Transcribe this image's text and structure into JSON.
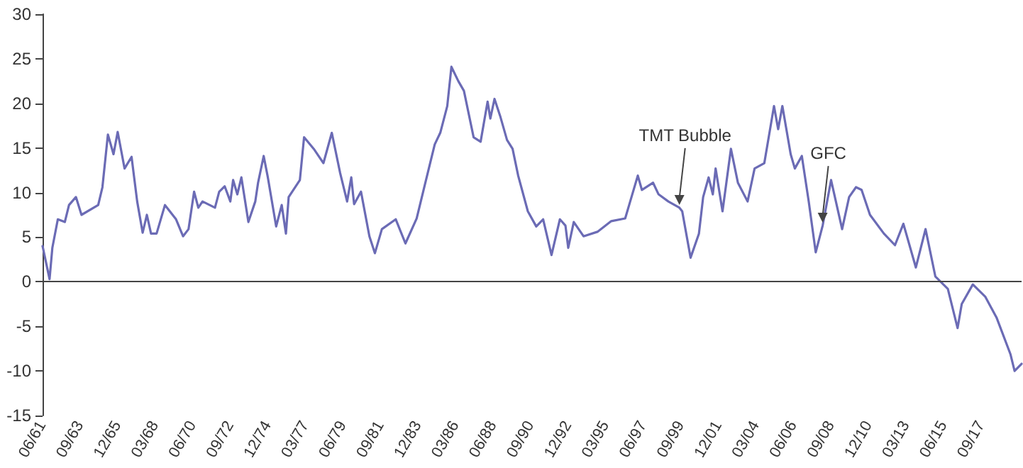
{
  "chart_data": {
    "type": "line",
    "marker": "none",
    "line_style": "solid",
    "grid": false,
    "xlim": [
      "1961-06",
      "2020-02"
    ],
    "ylim": [
      -15,
      30
    ],
    "yticks": [
      -15,
      -10,
      -5,
      0,
      5,
      10,
      15,
      20,
      25,
      30
    ],
    "xticks": [
      {
        "value": "1961-06",
        "label": "06/61"
      },
      {
        "value": "1963-09",
        "label": "09/63"
      },
      {
        "value": "1965-12",
        "label": "12/65"
      },
      {
        "value": "1968-03",
        "label": "03/68"
      },
      {
        "value": "1970-06",
        "label": "06/70"
      },
      {
        "value": "1972-09",
        "label": "09/72"
      },
      {
        "value": "1974-12",
        "label": "12/74"
      },
      {
        "value": "1977-03",
        "label": "03/77"
      },
      {
        "value": "1979-06",
        "label": "06/79"
      },
      {
        "value": "1981-09",
        "label": "09/81"
      },
      {
        "value": "1983-12",
        "label": "12/83"
      },
      {
        "value": "1986-03",
        "label": "03/86"
      },
      {
        "value": "1988-06",
        "label": "06/88"
      },
      {
        "value": "1990-09",
        "label": "09/90"
      },
      {
        "value": "1992-12",
        "label": "12/92"
      },
      {
        "value": "1995-03",
        "label": "03/95"
      },
      {
        "value": "1997-06",
        "label": "06/97"
      },
      {
        "value": "1999-09",
        "label": "09/99"
      },
      {
        "value": "2001-12",
        "label": "12/01"
      },
      {
        "value": "2004-03",
        "label": "03/04"
      },
      {
        "value": "2006-06",
        "label": "06/06"
      },
      {
        "value": "2008-09",
        "label": "09/08"
      },
      {
        "value": "2010-12",
        "label": "12/10"
      },
      {
        "value": "2013-03",
        "label": "03/13"
      },
      {
        "value": "2015-06",
        "label": "06/15"
      },
      {
        "value": "2017-09",
        "label": "09/17"
      }
    ],
    "ref_lines": [
      {
        "axis": "y",
        "value": 0,
        "color": "#444444"
      }
    ],
    "annotations": [
      {
        "text": "TMT Bubble",
        "x": "1999-08",
        "y": 8.3
      },
      {
        "text": "GFC",
        "x": "2008-03",
        "y": 6.3
      }
    ],
    "series": [
      {
        "color": "#6b6bb5",
        "x": [
          "1961-06",
          "1961-11",
          "1962-01",
          "1962-05",
          "1962-10",
          "1963-01",
          "1963-06",
          "1963-10",
          "1964-10",
          "1965-01",
          "1965-05",
          "1965-09",
          "1965-12",
          "1966-05",
          "1966-10",
          "1967-02",
          "1967-06",
          "1967-09",
          "1967-12",
          "1968-04",
          "1968-10",
          "1969-06",
          "1969-11",
          "1970-03",
          "1970-07",
          "1970-10",
          "1971-01",
          "1971-10",
          "1972-01",
          "1972-05",
          "1972-09",
          "1972-11",
          "1973-02",
          "1973-05",
          "1973-10",
          "1974-03",
          "1974-05",
          "1974-09",
          "1974-12",
          "1975-06",
          "1975-10",
          "1976-01",
          "1976-03",
          "1976-11",
          "1977-02",
          "1977-09",
          "1978-04",
          "1978-10",
          "1979-04",
          "1979-09",
          "1979-12",
          "1980-02",
          "1980-07",
          "1981-01",
          "1981-05",
          "1981-10",
          "1982-08",
          "1983-03",
          "1983-11",
          "1984-04",
          "1984-12",
          "1985-04",
          "1985-09",
          "1985-12",
          "1986-05",
          "1986-09",
          "1987-04",
          "1987-09",
          "1988-02",
          "1988-04",
          "1988-07",
          "1988-11",
          "1989-04",
          "1989-08",
          "1989-12",
          "1990-07",
          "1991-01",
          "1991-06",
          "1991-12",
          "1992-06",
          "1992-10",
          "1992-12",
          "1993-04",
          "1993-11",
          "1994-09",
          "1995-07",
          "1996-05",
          "1996-08",
          "1997-02",
          "1997-05",
          "1998-01",
          "1998-05",
          "1998-12",
          "1999-08",
          "1999-10",
          "2000-04",
          "2000-10",
          "2001-01",
          "2001-05",
          "2001-08",
          "2001-10",
          "2002-03",
          "2002-09",
          "2003-02",
          "2003-09",
          "2004-02",
          "2004-09",
          "2005-04",
          "2005-07",
          "2005-10",
          "2006-04",
          "2006-07",
          "2006-12",
          "2007-05",
          "2007-10",
          "2008-03",
          "2008-09",
          "2009-05",
          "2009-10",
          "2010-03",
          "2010-07",
          "2011-01",
          "2011-11",
          "2012-07",
          "2013-01",
          "2013-10",
          "2014-05",
          "2014-12",
          "2015-09",
          "2016-04",
          "2016-07",
          "2017-03",
          "2017-12",
          "2018-08",
          "2019-06",
          "2019-09",
          "2020-02"
        ],
        "values": [
          4.0,
          0.3,
          3.8,
          7.0,
          6.7,
          8.6,
          9.5,
          7.5,
          8.6,
          10.6,
          16.5,
          14.3,
          16.8,
          12.7,
          14.0,
          9.0,
          5.5,
          7.5,
          5.4,
          5.4,
          8.6,
          7.0,
          5.1,
          5.9,
          10.1,
          8.3,
          9.0,
          8.3,
          10.1,
          10.7,
          9.0,
          11.4,
          9.8,
          11.7,
          6.7,
          9.0,
          11.1,
          14.1,
          11.7,
          6.2,
          8.6,
          5.4,
          9.5,
          11.4,
          16.2,
          14.9,
          13.3,
          16.7,
          12.2,
          9.0,
          11.7,
          8.7,
          10.1,
          5.1,
          3.2,
          5.9,
          7.0,
          4.3,
          7.1,
          10.3,
          15.4,
          16.7,
          19.7,
          24.1,
          22.5,
          21.4,
          16.2,
          15.7,
          20.2,
          18.3,
          20.5,
          18.6,
          15.9,
          14.9,
          11.9,
          7.9,
          6.2,
          7.0,
          3.0,
          7.0,
          6.3,
          3.8,
          6.7,
          5.1,
          5.6,
          6.8,
          7.1,
          8.7,
          11.9,
          10.3,
          11.1,
          9.8,
          9.0,
          8.3,
          7.9,
          2.7,
          5.4,
          9.5,
          11.7,
          9.8,
          12.7,
          7.9,
          14.9,
          11.1,
          9.0,
          12.7,
          13.3,
          19.7,
          17.1,
          19.7,
          14.3,
          12.7,
          14.1,
          9.0,
          3.3,
          6.3,
          11.4,
          5.9,
          9.5,
          10.6,
          10.3,
          7.5,
          5.4,
          4.1,
          6.5,
          1.6,
          5.9,
          0.6,
          -0.8,
          -5.2,
          -2.5,
          -0.3,
          -1.7,
          -4.0,
          -8.1,
          -10.0,
          -9.2
        ]
      }
    ]
  }
}
